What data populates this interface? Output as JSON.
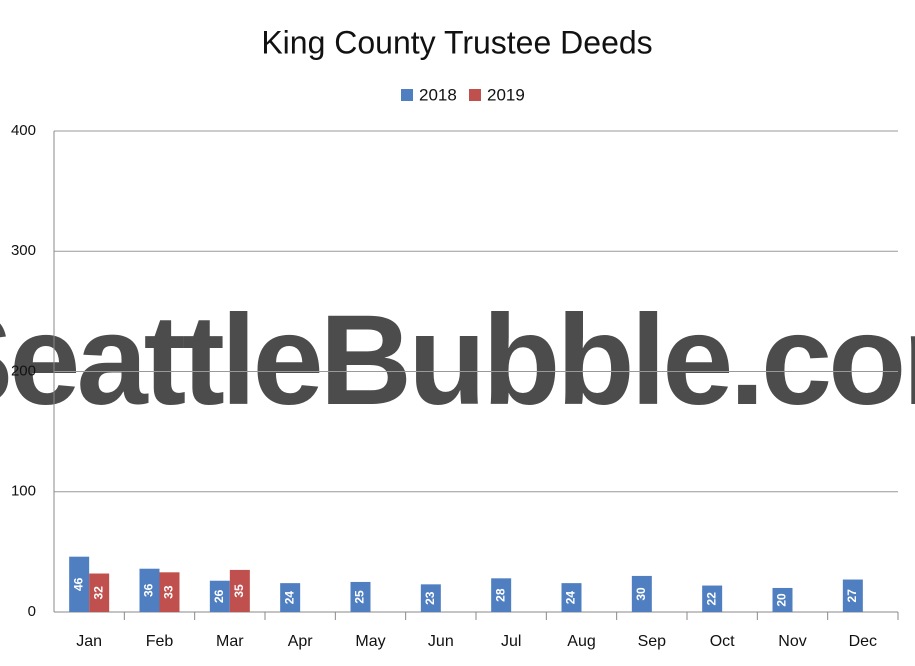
{
  "chart_data": {
    "type": "bar",
    "title": "King County Trustee Deeds",
    "watermark": "SeattleBubble.com",
    "categories": [
      "Jan",
      "Feb",
      "Mar",
      "Apr",
      "May",
      "Jun",
      "Jul",
      "Aug",
      "Sep",
      "Oct",
      "Nov",
      "Dec"
    ],
    "series": [
      {
        "name": "2018",
        "color": "#4f7fc0",
        "values": [
          46,
          36,
          26,
          24,
          25,
          23,
          28,
          24,
          30,
          22,
          20,
          27
        ]
      },
      {
        "name": "2019",
        "color": "#c0504d",
        "values": [
          32,
          33,
          35,
          null,
          null,
          null,
          null,
          null,
          null,
          null,
          null,
          null
        ]
      }
    ],
    "ylim": [
      0,
      400
    ],
    "yticks": [
      0,
      100,
      200,
      300,
      400
    ],
    "grid": true,
    "legend": "top"
  }
}
